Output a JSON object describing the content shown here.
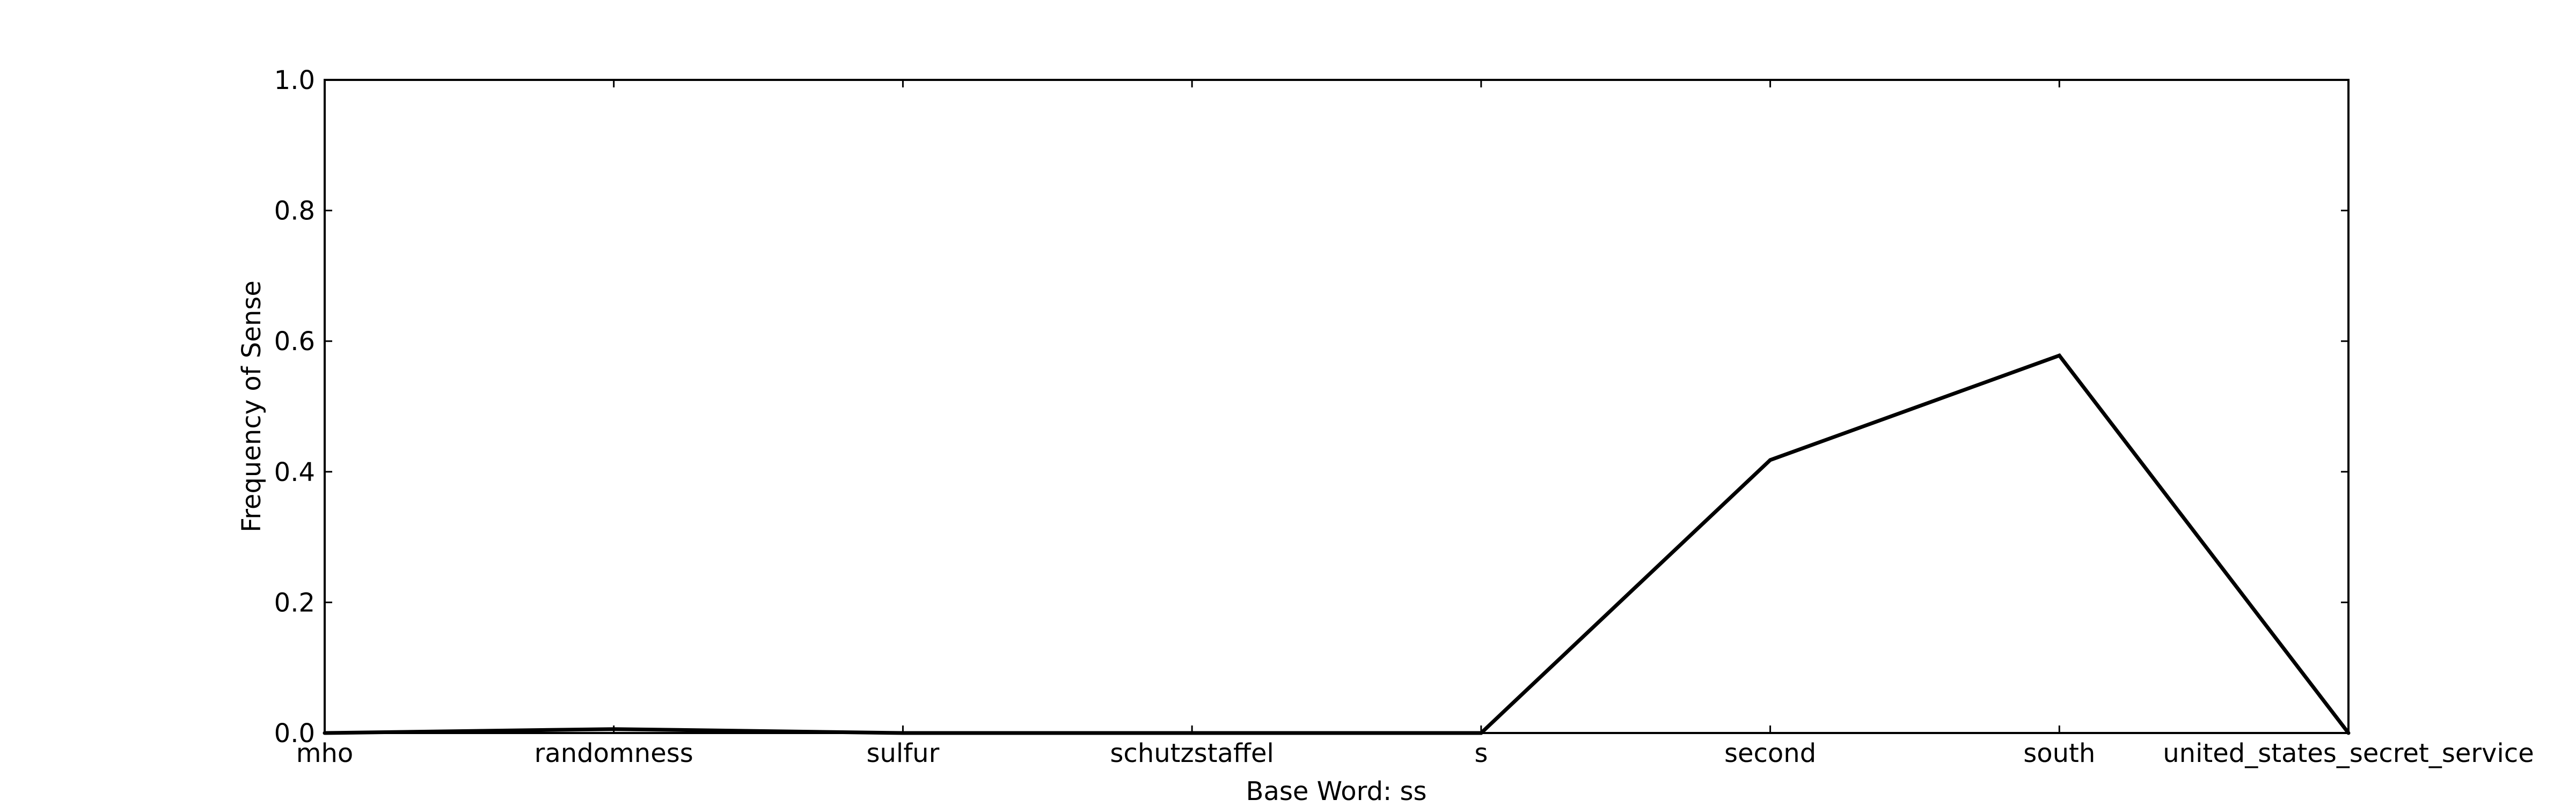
{
  "chart_data": {
    "type": "line",
    "title": "",
    "xlabel": "Base Word: ss",
    "ylabel": "Frequency of Sense",
    "categories": [
      "mho",
      "randomness",
      "sulfur",
      "schutzstaffel",
      "s",
      "second",
      "south",
      "united_states_secret_service"
    ],
    "series": [
      {
        "values": [
          0.0,
          0.006,
          0.0,
          0.0,
          0.0,
          0.418,
          0.578,
          0.0
        ]
      }
    ],
    "ylim": [
      0.0,
      1.0
    ],
    "yticks": [
      "0.0",
      "0.2",
      "0.4",
      "0.6",
      "0.8",
      "1.0"
    ],
    "grid": false,
    "line_color": "#000000"
  }
}
